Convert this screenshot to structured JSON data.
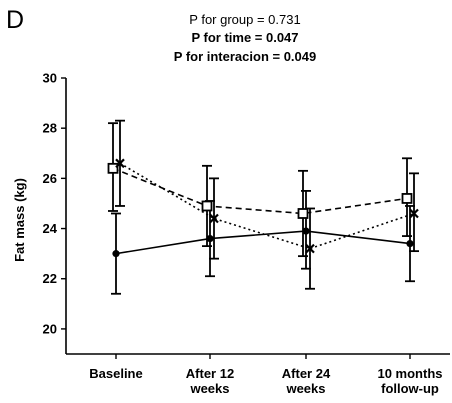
{
  "chart_data": {
    "type": "line",
    "panel_label": "D",
    "title_lines": [
      "P for group = 0.731",
      "P for time = 0.047",
      "P for interacion = 0.049"
    ],
    "xlabel": "",
    "ylabel": "Fat mass (kg)",
    "ylim": [
      19,
      30
    ],
    "yticks": [
      20,
      22,
      24,
      26,
      28,
      30
    ],
    "categories": [
      [
        "Baseline"
      ],
      [
        "After 12",
        "weeks"
      ],
      [
        "After 24",
        "weeks"
      ],
      [
        "10 months",
        "follow-up"
      ]
    ],
    "grid": false,
    "series": [
      {
        "line_style": "solid",
        "marker": "circle",
        "values": [
          23.0,
          23.6,
          23.9,
          23.4
        ],
        "err_low": [
          21.4,
          22.1,
          22.4,
          21.9
        ],
        "err_high": [
          24.6,
          25.1,
          25.5,
          24.9
        ]
      },
      {
        "line_style": "dashed",
        "marker": "open-square",
        "values": [
          26.4,
          24.9,
          24.6,
          25.2
        ],
        "err_low": [
          24.7,
          23.3,
          22.9,
          23.7
        ],
        "err_high": [
          28.2,
          26.5,
          26.3,
          26.8
        ]
      },
      {
        "line_style": "dotted",
        "marker": "cross",
        "values": [
          26.6,
          24.4,
          23.2,
          24.6
        ],
        "err_low": [
          24.9,
          22.8,
          21.6,
          23.1
        ],
        "err_high": [
          28.3,
          26.0,
          24.8,
          26.2
        ]
      }
    ]
  }
}
